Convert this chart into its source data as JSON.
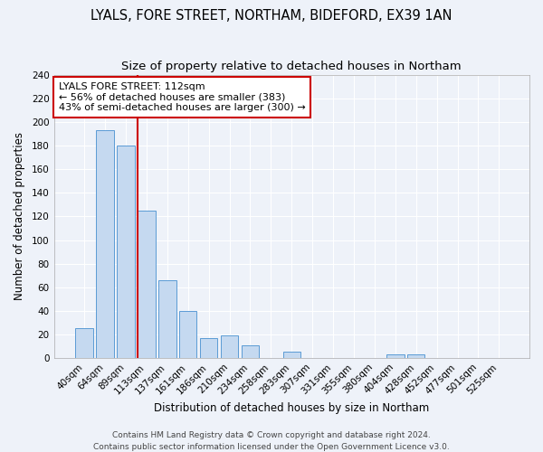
{
  "title": "LYALS, FORE STREET, NORTHAM, BIDEFORD, EX39 1AN",
  "subtitle": "Size of property relative to detached houses in Northam",
  "xlabel": "Distribution of detached houses by size in Northam",
  "ylabel": "Number of detached properties",
  "bin_labels": [
    "40sqm",
    "64sqm",
    "89sqm",
    "113sqm",
    "137sqm",
    "161sqm",
    "186sqm",
    "210sqm",
    "234sqm",
    "258sqm",
    "283sqm",
    "307sqm",
    "331sqm",
    "355sqm",
    "380sqm",
    "404sqm",
    "428sqm",
    "452sqm",
    "477sqm",
    "501sqm",
    "525sqm"
  ],
  "bar_heights": [
    25,
    193,
    180,
    125,
    66,
    40,
    17,
    19,
    11,
    0,
    5,
    0,
    0,
    0,
    0,
    3,
    3,
    0,
    0,
    0,
    0
  ],
  "bar_color": "#c5d9f0",
  "bar_edge_color": "#5b9bd5",
  "vline_color": "#cc0000",
  "annotation_title": "LYALS FORE STREET: 112sqm",
  "annotation_line1": "← 56% of detached houses are smaller (383)",
  "annotation_line2": "43% of semi-detached houses are larger (300) →",
  "annotation_box_color": "#cc0000",
  "ylim": [
    0,
    240
  ],
  "yticks": [
    0,
    20,
    40,
    60,
    80,
    100,
    120,
    140,
    160,
    180,
    200,
    220,
    240
  ],
  "footer1": "Contains HM Land Registry data © Crown copyright and database right 2024.",
  "footer2": "Contains public sector information licensed under the Open Government Licence v3.0.",
  "background_color": "#eef2f9",
  "grid_color": "#ffffff",
  "title_fontsize": 10.5,
  "subtitle_fontsize": 9.5,
  "axis_label_fontsize": 8.5,
  "tick_fontsize": 7.5,
  "annotation_fontsize": 8,
  "footer_fontsize": 6.5
}
